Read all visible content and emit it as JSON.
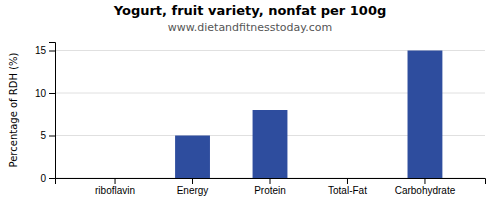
{
  "chart_data": {
    "type": "bar",
    "title": "Yogurt, fruit variety, nonfat per 100g",
    "subtitle": "www.dietandfitnesstoday.com",
    "ylabel": "Percentage of RDH (%)",
    "categories": [
      "riboflavin",
      "Energy",
      "Protein",
      "Total-Fat",
      "Carbohydrate"
    ],
    "values": [
      0.0,
      5.0,
      8.0,
      0.0,
      15.0
    ],
    "color": "#2e4d9e",
    "ylim": [
      0,
      16
    ],
    "yticks": [
      0,
      5,
      10,
      15
    ],
    "grid": true
  }
}
